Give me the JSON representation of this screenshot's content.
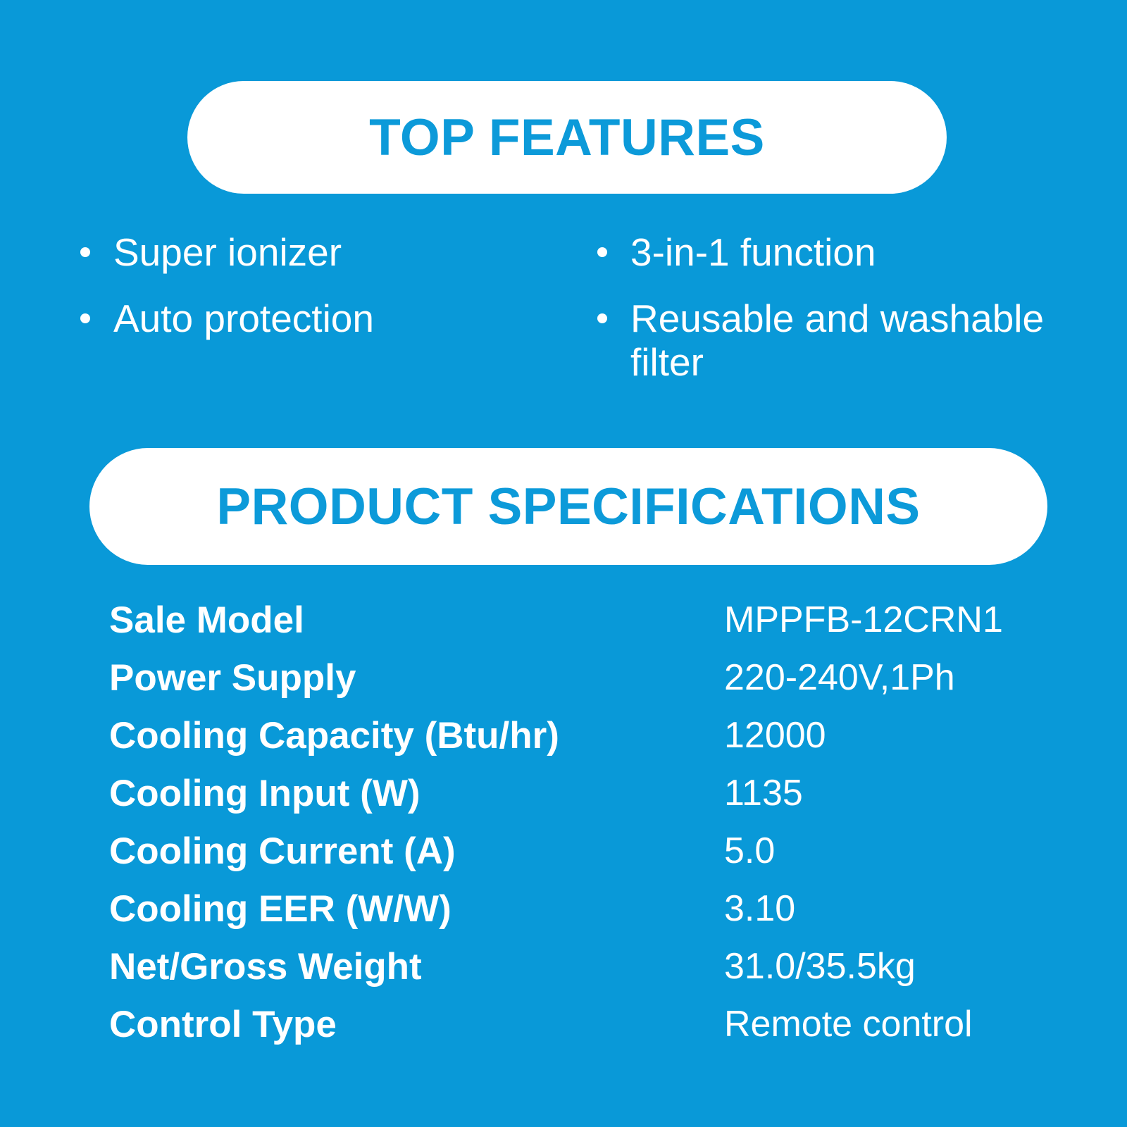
{
  "colors": {
    "background": "#0999D8",
    "accent": "#0C9AD9",
    "pill_background": "#FFFFFF",
    "text": "#FFFFFF"
  },
  "top_features": {
    "title": "TOP FEATURES",
    "items_left": [
      "Super ionizer",
      "Auto protection"
    ],
    "items_right": [
      "3-in-1 function",
      "Reusable and washable filter"
    ]
  },
  "specifications": {
    "title": "PRODUCT SPECIFICATIONS",
    "rows": [
      {
        "label": "Sale Model",
        "value": "MPPFB-12CRN1"
      },
      {
        "label": "Power Supply",
        "value": "220-240V,1Ph"
      },
      {
        "label": "Cooling Capacity (Btu/hr)",
        "value": "12000"
      },
      {
        "label": "Cooling Input (W)",
        "value": "1135"
      },
      {
        "label": "Cooling Current (A)",
        "value": "5.0"
      },
      {
        "label": "Cooling EER (W/W)",
        "value": "3.10"
      },
      {
        "label": "Net/Gross Weight",
        "value": "31.0/35.5kg"
      },
      {
        "label": "Control Type",
        "value": "Remote control"
      }
    ]
  }
}
